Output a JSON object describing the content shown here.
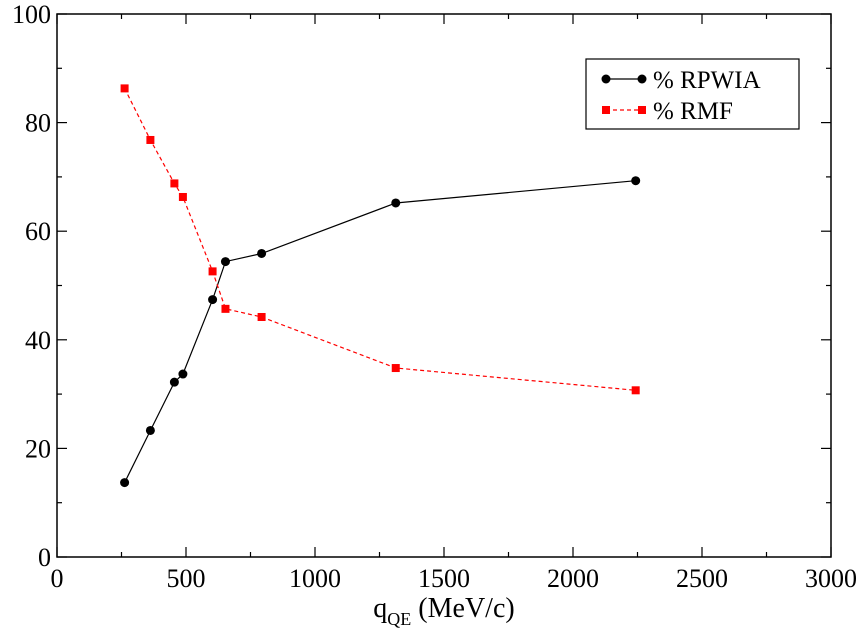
{
  "chart_data": {
    "type": "line",
    "title": "",
    "xlabel": {
      "main": "q",
      "sub": "QE",
      "unit": " (MeV/c)"
    },
    "ylabel": "",
    "xlim": [
      0,
      3000
    ],
    "ylim": [
      0,
      100
    ],
    "x_ticks": [
      "0",
      "500",
      "1000",
      "1500",
      "2000",
      "2500",
      "3000"
    ],
    "y_ticks": [
      "0",
      "20",
      "40",
      "60",
      "80",
      "100"
    ],
    "grid": false,
    "legend_position": "top-right",
    "series": [
      {
        "name": "% RPWIA",
        "color": "#000000",
        "line_style": "solid",
        "marker": "circle",
        "points": [
          [
            262,
            13.7
          ],
          [
            362,
            23.3
          ],
          [
            455,
            32.2
          ],
          [
            488,
            33.7
          ],
          [
            603,
            47.4
          ],
          [
            653,
            54.4
          ],
          [
            793,
            55.9
          ],
          [
            1313,
            65.2
          ],
          [
            2243,
            69.3
          ]
        ]
      },
      {
        "name": "% RMF",
        "color": "#ff0000",
        "line_style": "dashed",
        "marker": "square",
        "points": [
          [
            262,
            86.3
          ],
          [
            362,
            76.8
          ],
          [
            455,
            68.8
          ],
          [
            488,
            66.3
          ],
          [
            603,
            52.6
          ],
          [
            653,
            45.7
          ],
          [
            793,
            44.2
          ],
          [
            1313,
            34.8
          ],
          [
            2243,
            30.7
          ]
        ]
      }
    ]
  }
}
